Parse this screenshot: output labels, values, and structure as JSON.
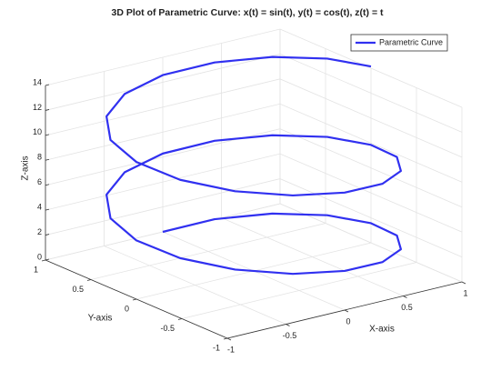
{
  "chart_data": {
    "type": "line3d",
    "title": "3D Plot of Parametric Curve: x(t) = sin(t), y(t) = cos(t), z(t) = t",
    "xlabel": "X-axis",
    "ylabel": "Y-axis",
    "zlabel": "Z-axis",
    "xlim": [
      -1,
      1
    ],
    "ylim": [
      -1,
      1
    ],
    "zlim": [
      0,
      14
    ],
    "xticks": [
      -1,
      -0.5,
      0,
      0.5,
      1
    ],
    "yticks": [
      -1,
      -0.5,
      0,
      0.5,
      1
    ],
    "zticks": [
      0,
      2,
      4,
      6,
      8,
      10,
      12,
      14
    ],
    "grid": true,
    "legend": "upper-right",
    "series": [
      {
        "name": "Parametric Curve",
        "color": "#3030f0",
        "x": [
          0,
          0.383,
          0.707,
          0.924,
          1,
          0.924,
          0.707,
          0.383,
          0,
          -0.383,
          -0.707,
          -0.924,
          -1,
          -0.924,
          -0.707,
          -0.383,
          0,
          0.383,
          0.707,
          0.924,
          1,
          0.924,
          0.707,
          0.383,
          0,
          -0.383,
          -0.707,
          -0.924,
          -1,
          -0.924,
          -0.707,
          -0.383,
          0,
          0.383,
          0.707,
          0.924,
          1
        ],
        "y": [
          1,
          0.924,
          0.707,
          0.383,
          0,
          -0.383,
          -0.707,
          -0.924,
          -1,
          -0.924,
          -0.707,
          -0.383,
          0,
          0.383,
          0.707,
          0.924,
          1,
          0.924,
          0.707,
          0.383,
          0,
          -0.383,
          -0.707,
          -0.924,
          -1,
          -0.924,
          -0.707,
          -0.383,
          0,
          0.383,
          0.707,
          0.924,
          1,
          0.924,
          0.707,
          0.383,
          0
        ],
        "z": [
          0,
          0.39,
          0.79,
          1.18,
          1.57,
          1.96,
          2.36,
          2.75,
          3.14,
          3.53,
          3.93,
          4.32,
          4.71,
          5.11,
          5.5,
          5.89,
          6.28,
          6.68,
          7.07,
          7.46,
          7.85,
          8.25,
          8.64,
          9.03,
          9.42,
          9.82,
          10.21,
          10.6,
          11,
          11.39,
          11.78,
          12.17,
          12.57,
          12.96,
          13.35,
          13.74,
          14.14
        ]
      }
    ]
  }
}
